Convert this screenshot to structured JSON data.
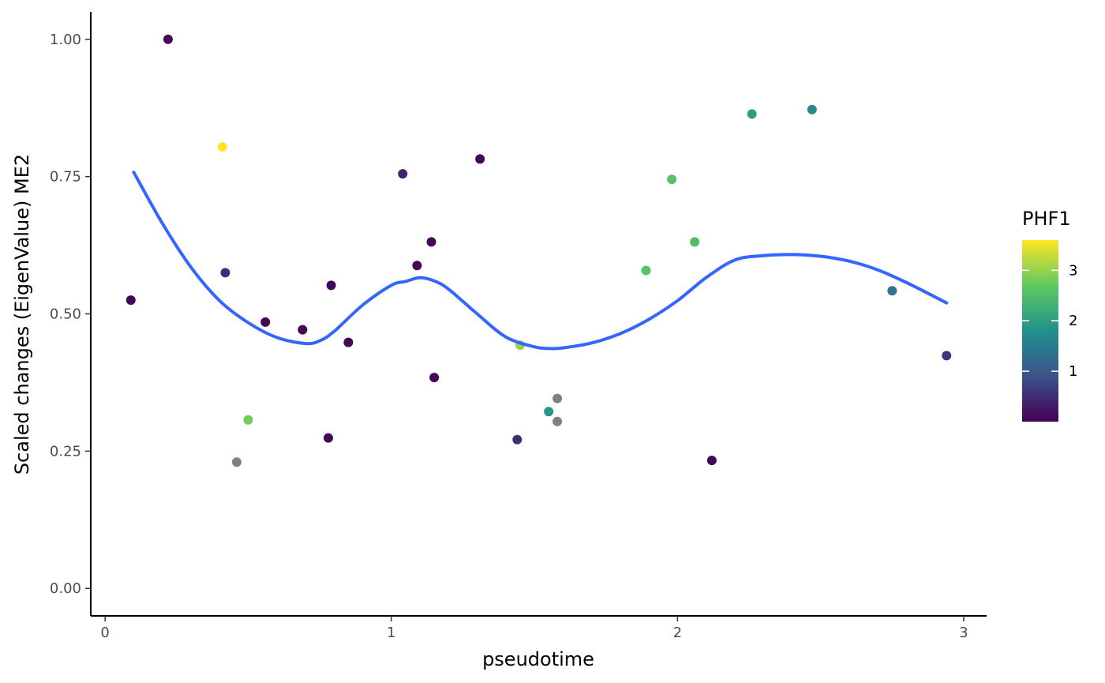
{
  "chart_data": {
    "type": "scatter",
    "title": "",
    "xlabel": "pseudotime",
    "ylabel": "Scaled changes (EigenValue) ME2",
    "xlim": [
      -0.05,
      3.08
    ],
    "ylim": [
      -0.05,
      1.05
    ],
    "xticks": [
      0,
      1,
      2,
      3
    ],
    "xtick_labels": [
      "0",
      "1",
      "2",
      "3"
    ],
    "yticks": [
      0,
      0.25,
      0.5,
      0.75,
      1.0
    ],
    "ytick_labels": [
      "0.00",
      "0.25",
      "0.50",
      "0.75",
      "1.00"
    ],
    "grid": false,
    "legend": {
      "title": "PHF1",
      "placement": "right",
      "range": [
        0,
        3.6
      ],
      "ticks": [
        1,
        2,
        3
      ],
      "tick_labels": [
        "1",
        "2",
        "3"
      ],
      "colormap": [
        "#440154",
        "#3b528b",
        "#21918c",
        "#5ec962",
        "#fde725"
      ],
      "na_color": "#808080"
    },
    "points": [
      {
        "x": 0.09,
        "y": 0.525,
        "color": 0.05
      },
      {
        "x": 0.22,
        "y": 1.0,
        "color": 0.05
      },
      {
        "x": 0.41,
        "y": 0.804,
        "color": 3.6
      },
      {
        "x": 0.42,
        "y": 0.575,
        "color": 0.5
      },
      {
        "x": 0.46,
        "y": 0.23,
        "color": null
      },
      {
        "x": 0.5,
        "y": 0.307,
        "color": 2.8
      },
      {
        "x": 0.56,
        "y": 0.485,
        "color": 0.05
      },
      {
        "x": 0.69,
        "y": 0.471,
        "color": 0.05
      },
      {
        "x": 0.78,
        "y": 0.274,
        "color": 0.05
      },
      {
        "x": 0.79,
        "y": 0.552,
        "color": 0.05
      },
      {
        "x": 0.85,
        "y": 0.448,
        "color": 0.05
      },
      {
        "x": 1.04,
        "y": 0.755,
        "color": 0.4
      },
      {
        "x": 1.09,
        "y": 0.588,
        "color": 0.05
      },
      {
        "x": 1.14,
        "y": 0.631,
        "color": 0.05
      },
      {
        "x": 1.15,
        "y": 0.384,
        "color": 0.05
      },
      {
        "x": 1.31,
        "y": 0.782,
        "color": 0.05
      },
      {
        "x": 1.44,
        "y": 0.271,
        "color": 0.5
      },
      {
        "x": 1.45,
        "y": 0.443,
        "color": 3.0
      },
      {
        "x": 1.55,
        "y": 0.322,
        "color": 1.9
      },
      {
        "x": 1.58,
        "y": 0.346,
        "color": null
      },
      {
        "x": 1.58,
        "y": 0.304,
        "color": null
      },
      {
        "x": 1.89,
        "y": 0.579,
        "color": 2.6
      },
      {
        "x": 1.98,
        "y": 0.745,
        "color": 2.6
      },
      {
        "x": 2.06,
        "y": 0.631,
        "color": 2.5
      },
      {
        "x": 2.12,
        "y": 0.233,
        "color": 0.05
      },
      {
        "x": 2.26,
        "y": 0.864,
        "color": 2.0
      },
      {
        "x": 2.47,
        "y": 0.872,
        "color": 1.7
      },
      {
        "x": 2.75,
        "y": 0.542,
        "color": 1.4
      },
      {
        "x": 2.94,
        "y": 0.424,
        "color": 0.6
      }
    ],
    "smooth_line": {
      "color": "#3366ff",
      "x": [
        0.1,
        0.2,
        0.3,
        0.4,
        0.5,
        0.6,
        0.7,
        0.75,
        0.8,
        0.9,
        1.0,
        1.05,
        1.1,
        1.15,
        1.2,
        1.3,
        1.4,
        1.5,
        1.55,
        1.6,
        1.7,
        1.8,
        1.9,
        2.0,
        2.1,
        2.2,
        2.3,
        2.4,
        2.5,
        2.6,
        2.7,
        2.8,
        2.94
      ],
      "y": [
        0.758,
        0.665,
        0.585,
        0.524,
        0.484,
        0.457,
        0.446,
        0.451,
        0.468,
        0.516,
        0.552,
        0.559,
        0.566,
        0.56,
        0.545,
        0.5,
        0.458,
        0.44,
        0.437,
        0.438,
        0.447,
        0.464,
        0.49,
        0.524,
        0.566,
        0.598,
        0.606,
        0.608,
        0.605,
        0.596,
        0.58,
        0.557,
        0.52
      ]
    }
  }
}
